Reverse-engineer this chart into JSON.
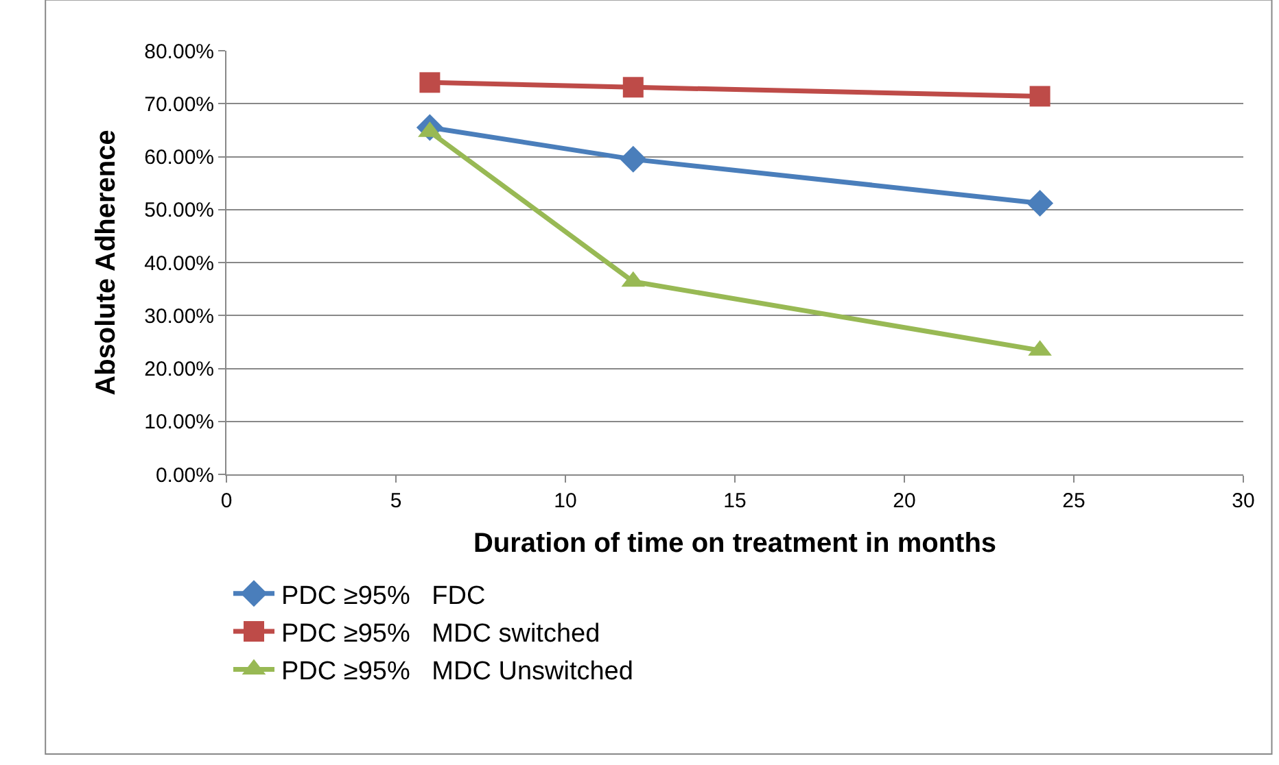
{
  "chart_data": {
    "type": "line",
    "xlabel": "Duration of time on treatment in months",
    "ylabel": "Absolute Adherence",
    "x": [
      6,
      12,
      24
    ],
    "series": [
      {
        "name": "PDC ≥95%   FDC",
        "color": "#4a7ebb",
        "values": [
          65.5,
          59.5,
          51.2
        ],
        "marker": "diamond"
      },
      {
        "name": "PDC ≥95%   MDC switched",
        "color": "#be4b48",
        "values": [
          74.0,
          73.1,
          71.4
        ],
        "marker": "square"
      },
      {
        "name": "PDC ≥95%   MDC Unswitched",
        "color": "#98b954",
        "values": [
          64.7,
          36.4,
          23.4
        ],
        "marker": "triangle"
      }
    ],
    "xlim": [
      0,
      30
    ],
    "xticks": [
      0,
      5,
      10,
      15,
      20,
      25,
      30
    ],
    "ylim": [
      0,
      80
    ],
    "yticks": [
      {
        "value": 0,
        "label": "0.00%"
      },
      {
        "value": 10,
        "label": "10.00%"
      },
      {
        "value": 20,
        "label": "20.00%"
      },
      {
        "value": 30,
        "label": "30.00%"
      },
      {
        "value": 40,
        "label": "40.00%"
      },
      {
        "value": 50,
        "label": "50.00%"
      },
      {
        "value": 60,
        "label": "60.00%"
      },
      {
        "value": 70,
        "label": "70.00%"
      },
      {
        "value": 80,
        "label": "80.00%"
      }
    ],
    "grid": "y",
    "legend": "bottom",
    "line_style": "solid"
  }
}
